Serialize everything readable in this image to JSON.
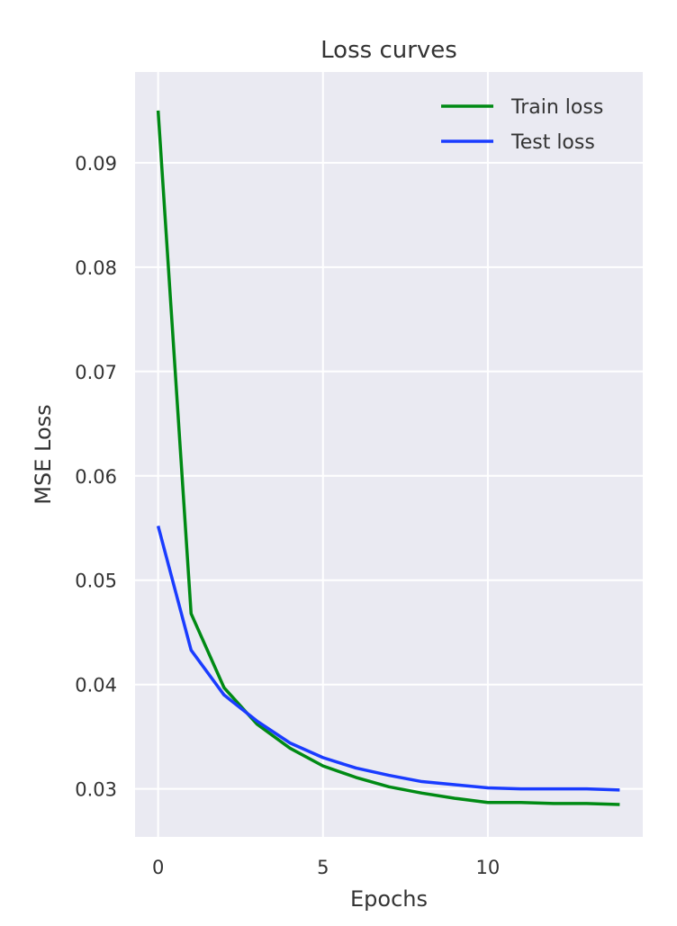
{
  "chart_data": {
    "type": "line",
    "title": "Loss curves",
    "xlabel": "Epochs",
    "ylabel": "MSE Loss",
    "xlim": [
      -0.7,
      14.7
    ],
    "ylim": [
      0.0254,
      0.0987
    ],
    "x_ticks": [
      0,
      5,
      10
    ],
    "x_tick_labels": [
      "0",
      "5",
      "10"
    ],
    "y_ticks": [
      0.03,
      0.04,
      0.05,
      0.06,
      0.07,
      0.08,
      0.09
    ],
    "y_tick_labels": [
      "0.03",
      "0.04",
      "0.05",
      "0.06",
      "0.07",
      "0.08",
      "0.09"
    ],
    "grid": true,
    "legend_position": "top-right",
    "x": [
      0,
      1,
      2,
      3,
      4,
      5,
      6,
      7,
      8,
      9,
      10,
      11,
      12,
      13,
      14
    ],
    "series": [
      {
        "name": "Train loss",
        "color": "#008a14",
        "values": [
          0.095,
          0.0468,
          0.0397,
          0.0362,
          0.0339,
          0.0322,
          0.0311,
          0.0302,
          0.0296,
          0.0291,
          0.0287,
          0.0287,
          0.0286,
          0.0286,
          0.0285
        ]
      },
      {
        "name": "Test loss",
        "color": "#1a3cff",
        "values": [
          0.0552,
          0.0433,
          0.039,
          0.0365,
          0.0344,
          0.033,
          0.032,
          0.0313,
          0.0307,
          0.0304,
          0.0301,
          0.03,
          0.03,
          0.03,
          0.0299
        ]
      }
    ]
  }
}
